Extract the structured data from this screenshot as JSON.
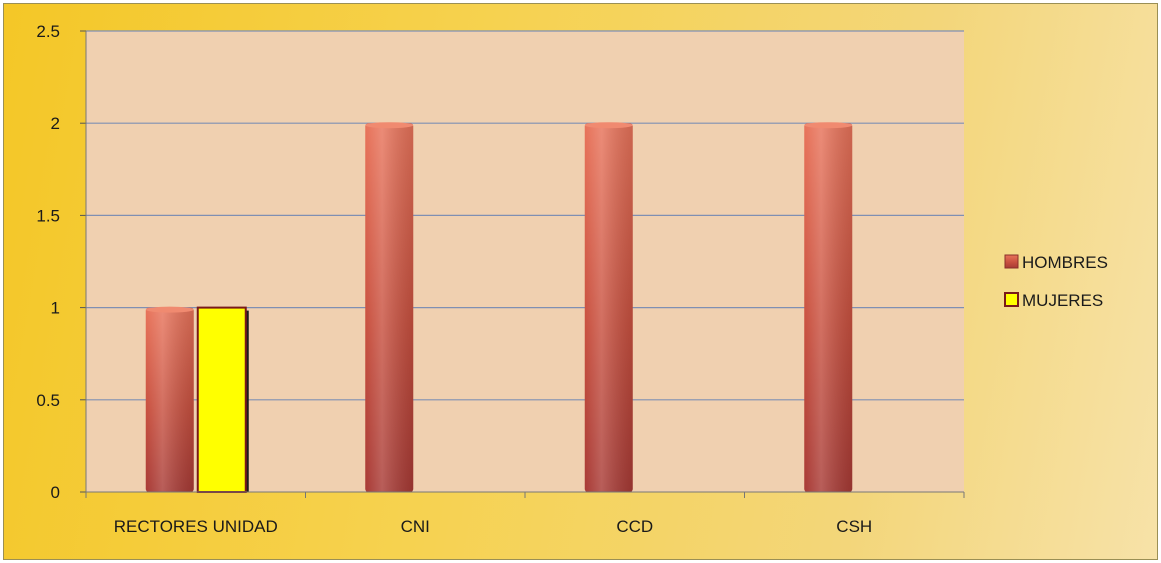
{
  "chart_data": {
    "type": "bar",
    "categories": [
      "RECTORES UNIDAD",
      "CNI",
      "CCD",
      "CSH"
    ],
    "series": [
      {
        "name": "HOMBRES",
        "values": [
          1,
          2,
          2,
          2
        ],
        "color": "#c4463a"
      },
      {
        "name": "MUJERES",
        "values": [
          1,
          null,
          null,
          null
        ],
        "color": "#ffff00"
      }
    ],
    "ylim": [
      0,
      2.5
    ],
    "yticks": [
      "0",
      "0.5",
      "1",
      "1.5",
      "2",
      "2.5"
    ],
    "grid": true,
    "legend": "right",
    "title": "",
    "xlabel": "",
    "ylabel": "",
    "plot_background": "#f0d0b0",
    "gridline_color": "#7f8fb3"
  }
}
